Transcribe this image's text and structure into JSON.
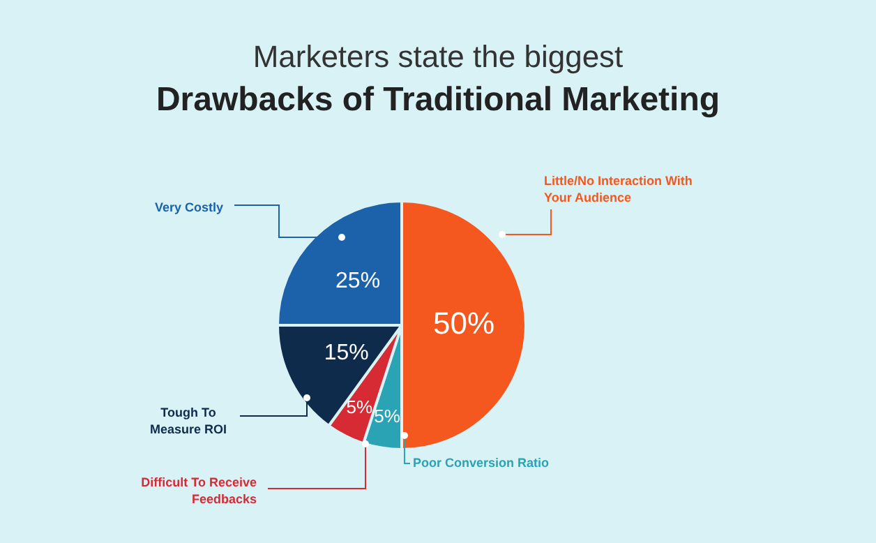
{
  "chart_data": {
    "type": "pie",
    "title": "Marketers state the biggest",
    "subtitle": "Drawbacks of Traditional Marketing",
    "categories": [
      "Little/No Interaction With Your Audience",
      "Poor Conversion Ratio",
      "Difficult To Receive Feedbacks",
      "Tough To Measure ROI",
      "Very Costly"
    ],
    "values": [
      50,
      5,
      5,
      15,
      25
    ],
    "colors": [
      "#f4581f",
      "#2aa3b5",
      "#d62b35",
      "#0f2b4c",
      "#1b62ab"
    ],
    "value_labels": [
      "50%",
      "5%",
      "5%",
      "15%",
      "25%"
    ],
    "legend": false
  }
}
